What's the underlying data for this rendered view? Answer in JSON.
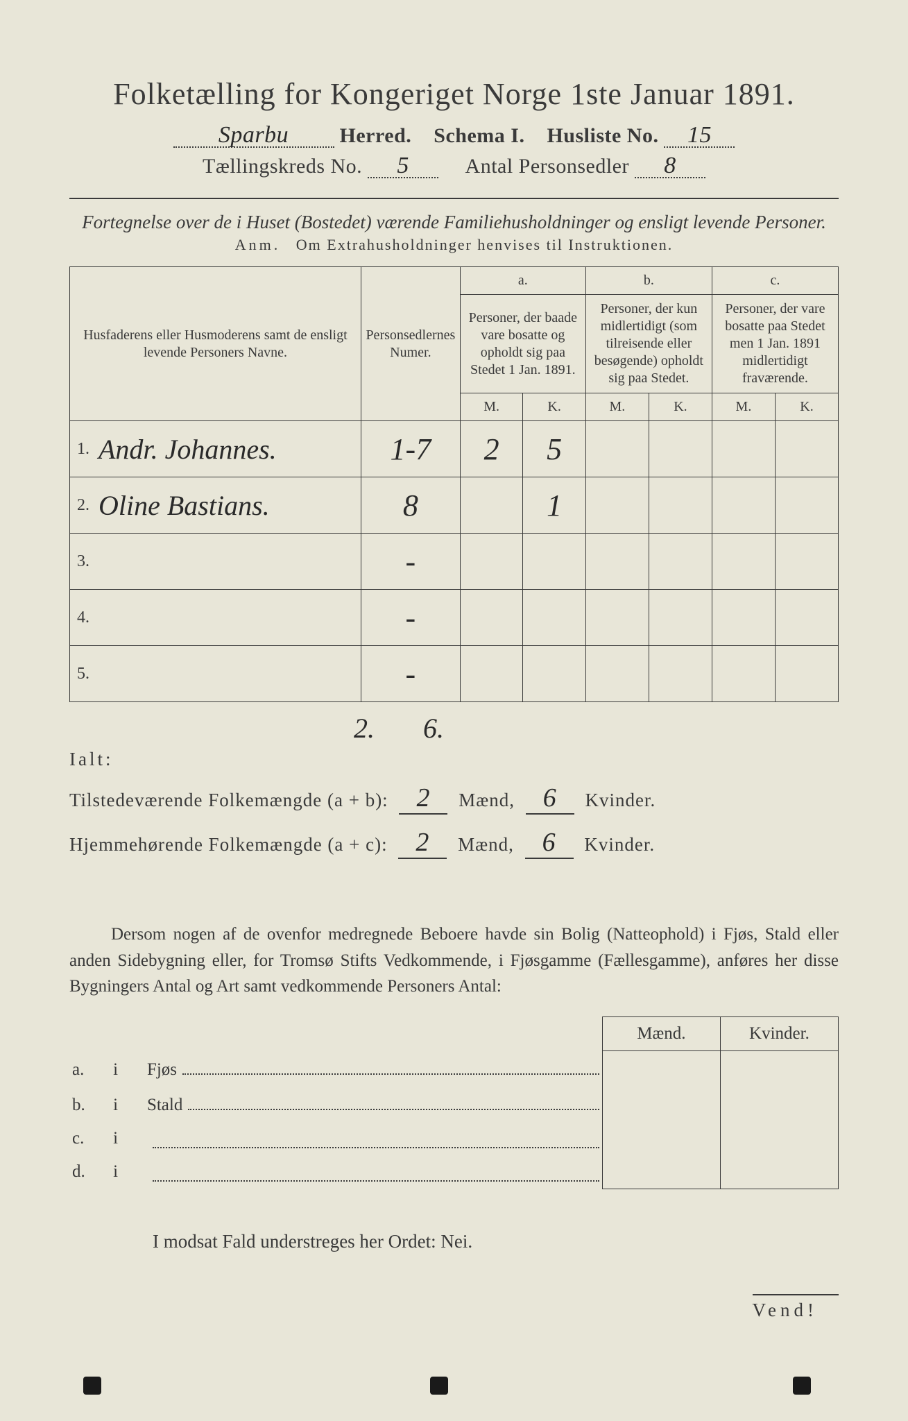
{
  "colors": {
    "paper": "#e8e6d8",
    "ink": "#3a3a3a",
    "handwriting": "#2a2a2a",
    "page_bg": "#2a2a2a"
  },
  "header": {
    "title": "Folketælling for Kongeriget Norge 1ste Januar 1891.",
    "herred_value": "Sparbu",
    "herred_label": "Herred.",
    "schema_label": "Schema I.",
    "husliste_label": "Husliste No.",
    "husliste_value": "15",
    "kreds_label": "Tællingskreds No.",
    "kreds_value": "5",
    "antal_label": "Antal Personsedler",
    "antal_value": "8"
  },
  "subtitle": "Fortegnelse over de i Huset (Bostedet) værende Familiehusholdninger og ensligt levende Personer.",
  "anm": {
    "prefix": "Anm.",
    "text": "Om Extrahusholdninger henvises til Instruktionen."
  },
  "table": {
    "col_names_header": "Husfaderens eller Husmoderens samt de ensligt levende Personers Navne.",
    "col_num_header": "Personsedlernes Numer.",
    "group_a": {
      "tag": "a.",
      "desc": "Personer, der baade vare bosatte og opholdt sig paa Stedet 1 Jan. 1891."
    },
    "group_b": {
      "tag": "b.",
      "desc": "Personer, der kun midlertidigt (som tilreisende eller besøgende) opholdt sig paa Stedet."
    },
    "group_c": {
      "tag": "c.",
      "desc": "Personer, der vare bosatte paa Stedet men 1 Jan. 1891 midlertidigt fraværende."
    },
    "m": "M.",
    "k": "K.",
    "rows": [
      {
        "n": "1.",
        "name": "Andr. Johannes.",
        "num": "1-7",
        "a_m": "2",
        "a_k": "5",
        "b_m": "",
        "b_k": "",
        "c_m": "",
        "c_k": ""
      },
      {
        "n": "2.",
        "name": "Oline Bastians.",
        "num": "8",
        "a_m": "",
        "a_k": "1",
        "b_m": "",
        "b_k": "",
        "c_m": "",
        "c_k": ""
      },
      {
        "n": "3.",
        "name": "",
        "num": "-",
        "a_m": "",
        "a_k": "",
        "b_m": "",
        "b_k": "",
        "c_m": "",
        "c_k": ""
      },
      {
        "n": "4.",
        "name": "",
        "num": "-",
        "a_m": "",
        "a_k": "",
        "b_m": "",
        "b_k": "",
        "c_m": "",
        "c_k": ""
      },
      {
        "n": "5.",
        "name": "",
        "num": "-",
        "a_m": "",
        "a_k": "",
        "b_m": "",
        "b_k": "",
        "c_m": "",
        "c_k": ""
      }
    ],
    "ialt_label": "Ialt:",
    "ialt_m": "2.",
    "ialt_k": "6."
  },
  "sums": {
    "line1_label": "Tilstedeværende Folkemængde (a + b):",
    "line1_m": "2",
    "line1_k": "6",
    "line2_label": "Hjemmehørende Folkemængde (a + c):",
    "line2_m": "2",
    "line2_k": "6",
    "maend": "Mænd,",
    "kvinder": "Kvinder."
  },
  "paragraph": "Dersom nogen af de ovenfor medregnede Beboere havde sin Bolig (Natteophold) i Fjøs, Stald eller anden Sidebygning eller, for Tromsø Stifts Vedkommende, i Fjøsgamme (Fællesgamme), anføres her disse Bygningers Antal og Art samt vedkommende Personers Antal:",
  "lower": {
    "head_m": "Mænd.",
    "head_k": "Kvinder.",
    "rows": [
      {
        "a": "a.",
        "i": "i",
        "place": "Fjøs"
      },
      {
        "a": "b.",
        "i": "i",
        "place": "Stald"
      },
      {
        "a": "c.",
        "i": "i",
        "place": ""
      },
      {
        "a": "d.",
        "i": "i",
        "place": ""
      }
    ]
  },
  "modsat": "I modsat Fald understreges her Ordet: Nei.",
  "vend": "Vend!"
}
